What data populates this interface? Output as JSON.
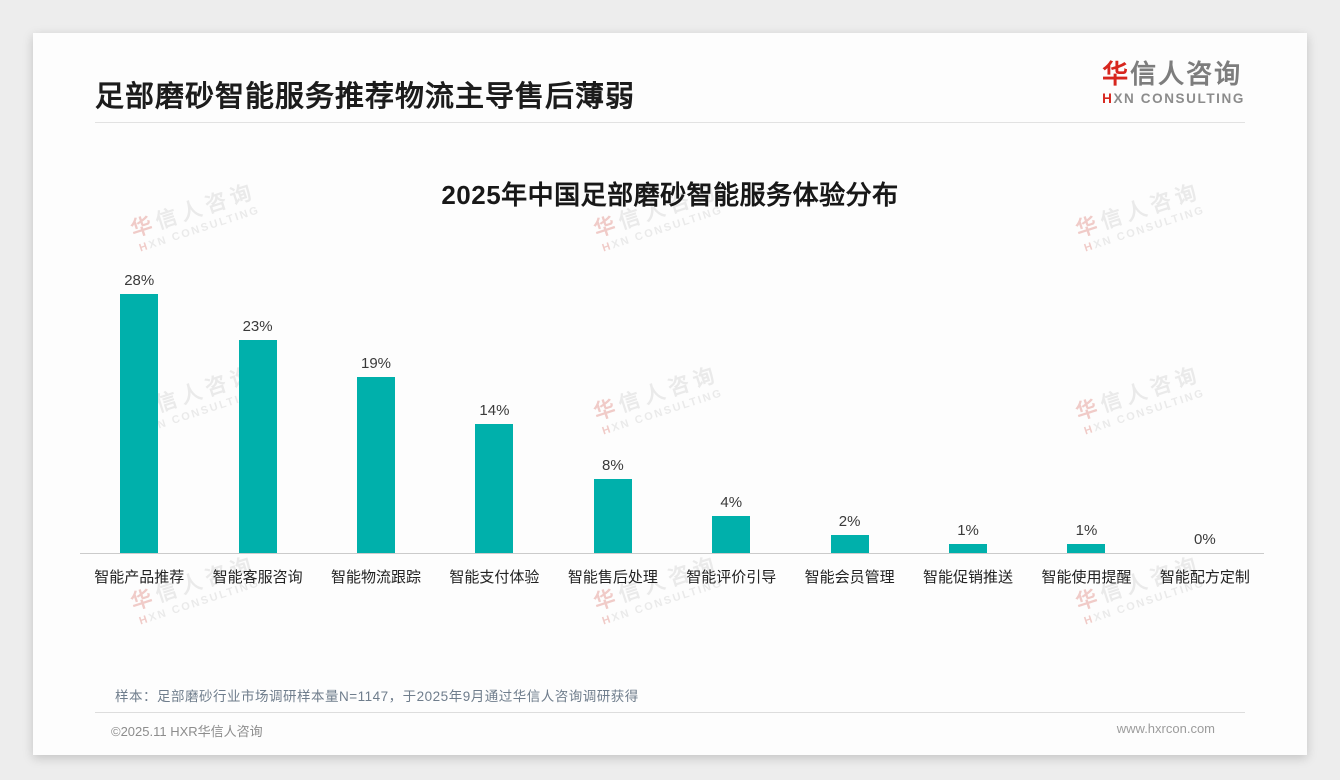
{
  "page": {
    "headline": "足部磨砂智能服务推荐物流主导售后薄弱"
  },
  "brand": {
    "logo_cn_accent": "华",
    "logo_cn_rest": "信人咨询",
    "logo_en_accent": "H",
    "logo_en_rest": "XN CONSULTING",
    "accent_color": "#d7261e"
  },
  "watermark": {
    "line1_accent": "华",
    "line1_rest": "信人咨询",
    "line2_accent": "H",
    "line2_rest": "XN CONSULTING"
  },
  "chart_data": {
    "type": "bar",
    "title": "2025年中国足部磨砂智能服务体验分布",
    "categories": [
      "智能产品推荐",
      "智能客服咨询",
      "智能物流跟踪",
      "智能支付体验",
      "智能售后处理",
      "智能评价引导",
      "智能会员管理",
      "智能促销推送",
      "智能使用提醒",
      "智能配方定制"
    ],
    "values": [
      28,
      23,
      19,
      14,
      8,
      4,
      2,
      1,
      1,
      0
    ],
    "value_labels": [
      "28%",
      "23%",
      "19%",
      "14%",
      "8%",
      "4%",
      "2%",
      "1%",
      "1%",
      "0%"
    ],
    "unit": "%",
    "xlabel": "",
    "ylabel": "",
    "ylim": [
      0,
      30
    ],
    "grid": false,
    "legend": false,
    "bar_color": "#00b0ab",
    "axis_line_color": "#cbcbcb"
  },
  "footnote": {
    "text": "样本：足部磨砂行业市场调研样本量N=1147，于2025年9月通过华信人咨询调研获得"
  },
  "footer": {
    "copyright": "©2025.11 HXR华信人咨询",
    "website": "www.hxrcon.com"
  }
}
